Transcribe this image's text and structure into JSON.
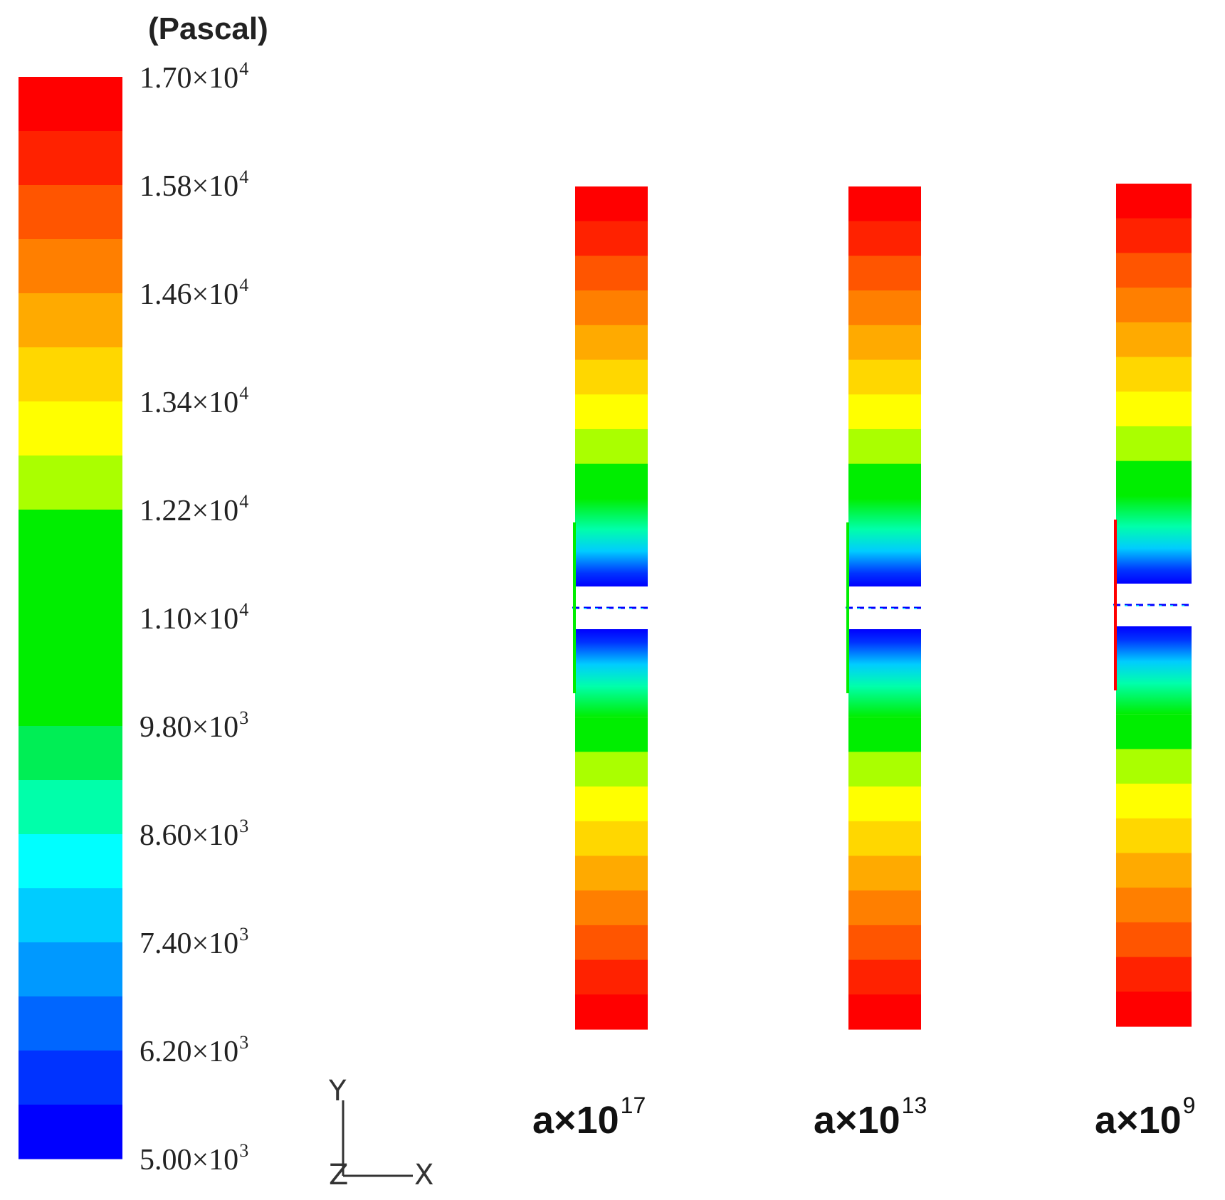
{
  "colorbar": {
    "unit": "(Pascal)",
    "colors": [
      "#ff0000",
      "#ff2200",
      "#ff5500",
      "#ff7f00",
      "#ffaa00",
      "#ffd700",
      "#ffff00",
      "#aaff00",
      "#00ee00",
      "#00ee00",
      "#00ee00",
      "#00ee00",
      "#00ee55",
      "#00ffaa",
      "#00ffff",
      "#00ccff",
      "#0099ff",
      "#0066ff",
      "#0033ff",
      "#0000ff"
    ],
    "ticks": [
      {
        "mant": "1.70×10",
        "exp": "4"
      },
      {
        "mant": "1.58×10",
        "exp": "4"
      },
      {
        "mant": "1.46×10",
        "exp": "4"
      },
      {
        "mant": "1.34×10",
        "exp": "4"
      },
      {
        "mant": "1.22×10",
        "exp": "4"
      },
      {
        "mant": "1.10×10",
        "exp": "4"
      },
      {
        "mant": "9.80×10",
        "exp": "3"
      },
      {
        "mant": "8.60×10",
        "exp": "3"
      },
      {
        "mant": "7.40×10",
        "exp": "3"
      },
      {
        "mant": "6.20×10",
        "exp": "3"
      },
      {
        "mant": "5.00×10",
        "exp": "3"
      }
    ]
  },
  "cases": [
    {
      "base": "a×10",
      "exp": "17"
    },
    {
      "base": "a×10",
      "exp": "13"
    },
    {
      "base": "a×10",
      "exp": "9"
    }
  ],
  "axes": {
    "y": "Y",
    "z": "Z",
    "x": "X"
  },
  "contour_colors": {
    "top_half": [
      "#ff0000",
      "#ff2200",
      "#ff5500",
      "#ff7f00",
      "#ffaa00",
      "#ffd700",
      "#ffff00",
      "#aaff00",
      "#00ee00"
    ],
    "bottom_half": [
      "#00ee00",
      "#aaff00",
      "#ffff00",
      "#ffd700",
      "#ffaa00",
      "#ff7f00",
      "#ff5500",
      "#ff2200",
      "#ff0000"
    ],
    "gap_blue": "#0000ff",
    "gap_cyan": "#00ffff"
  }
}
